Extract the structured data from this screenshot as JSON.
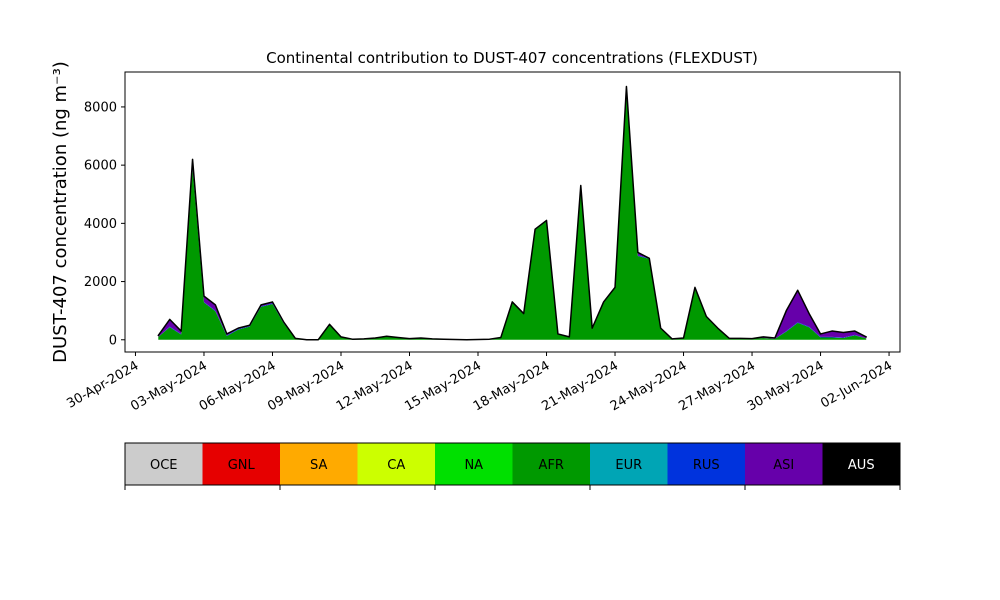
{
  "chart_data": {
    "type": "stacked_area",
    "title": "Continental contribution to DUST-407 concentrations (FLEXDUST)",
    "ylabel": "DUST-407 concentration (ng m⁻³)",
    "x": [
      "2024-05-01 00:00",
      "2024-05-01 12:00",
      "2024-05-02 00:00",
      "2024-05-02 12:00",
      "2024-05-03 00:00",
      "2024-05-03 12:00",
      "2024-05-04 00:00",
      "2024-05-04 12:00",
      "2024-05-05 00:00",
      "2024-05-05 12:00",
      "2024-05-06 00:00",
      "2024-05-06 12:00",
      "2024-05-07 00:00",
      "2024-05-07 12:00",
      "2024-05-08 00:00",
      "2024-05-08 12:00",
      "2024-05-09 00:00",
      "2024-05-09 12:00",
      "2024-05-10 00:00",
      "2024-05-10 12:00",
      "2024-05-11 00:00",
      "2024-05-11 12:00",
      "2024-05-12 00:00",
      "2024-05-12 12:00",
      "2024-05-13 00:00",
      "2024-05-13 12:00",
      "2024-05-14 00:00",
      "2024-05-14 12:00",
      "2024-05-15 00:00",
      "2024-05-15 12:00",
      "2024-05-16 00:00",
      "2024-05-16 12:00",
      "2024-05-17 00:00",
      "2024-05-17 12:00",
      "2024-05-18 00:00",
      "2024-05-18 12:00",
      "2024-05-19 00:00",
      "2024-05-19 12:00",
      "2024-05-20 00:00",
      "2024-05-20 12:00",
      "2024-05-21 00:00",
      "2024-05-21 12:00",
      "2024-05-22 00:00",
      "2024-05-22 12:00",
      "2024-05-23 00:00",
      "2024-05-23 12:00",
      "2024-05-24 00:00",
      "2024-05-24 12:00",
      "2024-05-25 00:00",
      "2024-05-25 12:00",
      "2024-05-26 00:00",
      "2024-05-26 12:00",
      "2024-05-27 00:00",
      "2024-05-27 12:00",
      "2024-05-28 00:00",
      "2024-05-28 12:00",
      "2024-05-29 00:00",
      "2024-05-29 12:00",
      "2024-05-30 00:00",
      "2024-05-30 12:00",
      "2024-05-31 00:00",
      "2024-05-31 12:00",
      "2024-06-01 00:00"
    ],
    "xlim": [
      "2024-04-29 13:00",
      "2024-06-02 11:30"
    ],
    "xticks": [
      {
        "value": "2024-04-30 00:00",
        "label": "30-Apr-2024"
      },
      {
        "value": "2024-05-03 00:00",
        "label": "03-May-2024"
      },
      {
        "value": "2024-05-06 00:00",
        "label": "06-May-2024"
      },
      {
        "value": "2024-05-09 00:00",
        "label": "09-May-2024"
      },
      {
        "value": "2024-05-12 00:00",
        "label": "12-May-2024"
      },
      {
        "value": "2024-05-15 00:00",
        "label": "15-May-2024"
      },
      {
        "value": "2024-05-18 00:00",
        "label": "18-May-2024"
      },
      {
        "value": "2024-05-21 00:00",
        "label": "21-May-2024"
      },
      {
        "value": "2024-05-24 00:00",
        "label": "24-May-2024"
      },
      {
        "value": "2024-05-27 00:00",
        "label": "27-May-2024"
      },
      {
        "value": "2024-05-30 00:00",
        "label": "30-May-2024"
      },
      {
        "value": "2024-06-02 00:00",
        "label": "02-Jun-2024"
      }
    ],
    "ylim": [
      -420,
      9200
    ],
    "yticks": [
      0,
      2000,
      4000,
      6000,
      8000
    ],
    "grid": false,
    "series": [
      {
        "name": "OCE",
        "color": "#cccccc",
        "values": [
          0,
          0,
          0,
          0,
          0,
          0,
          0,
          0,
          0,
          0,
          0,
          0,
          0,
          0,
          0,
          0,
          0,
          0,
          0,
          0,
          0,
          0,
          0,
          0,
          0,
          0,
          0,
          0,
          0,
          0,
          0,
          0,
          0,
          0,
          0,
          0,
          0,
          0,
          0,
          0,
          0,
          0,
          0,
          0,
          0,
          0,
          0,
          0,
          0,
          0,
          0,
          0,
          0,
          0,
          0,
          0,
          0,
          0,
          0,
          0,
          0,
          0,
          0
        ]
      },
      {
        "name": "GNL",
        "color": "#e60000",
        "values": [
          0,
          0,
          0,
          0,
          0,
          0,
          0,
          0,
          0,
          0,
          0,
          0,
          0,
          0,
          0,
          0,
          0,
          0,
          0,
          0,
          0,
          0,
          0,
          0,
          0,
          0,
          0,
          0,
          0,
          0,
          0,
          0,
          0,
          0,
          0,
          0,
          0,
          0,
          0,
          0,
          0,
          0,
          0,
          0,
          0,
          0,
          0,
          0,
          0,
          0,
          0,
          0,
          0,
          0,
          0,
          0,
          0,
          0,
          0,
          0,
          0,
          0,
          0
        ]
      },
      {
        "name": "SA",
        "color": "#ffaa00",
        "values": [
          0,
          0,
          0,
          0,
          0,
          0,
          0,
          0,
          0,
          0,
          0,
          0,
          0,
          0,
          0,
          0,
          0,
          0,
          0,
          0,
          0,
          0,
          0,
          0,
          0,
          0,
          0,
          0,
          0,
          0,
          0,
          0,
          0,
          0,
          0,
          0,
          0,
          0,
          0,
          0,
          0,
          0,
          0,
          0,
          0,
          0,
          0,
          0,
          0,
          0,
          0,
          0,
          0,
          0,
          0,
          0,
          0,
          0,
          0,
          0,
          0,
          0,
          0
        ]
      },
      {
        "name": "CA",
        "color": "#ccff00",
        "values": [
          0,
          0,
          0,
          0,
          0,
          0,
          0,
          0,
          0,
          0,
          0,
          0,
          0,
          0,
          0,
          0,
          0,
          0,
          0,
          0,
          0,
          0,
          0,
          0,
          0,
          0,
          0,
          0,
          0,
          0,
          0,
          0,
          0,
          0,
          0,
          0,
          0,
          0,
          0,
          0,
          0,
          0,
          0,
          0,
          0,
          0,
          0,
          0,
          0,
          0,
          0,
          0,
          0,
          0,
          0,
          0,
          0,
          0,
          0,
          0,
          0,
          0,
          0
        ]
      },
      {
        "name": "NA",
        "color": "#00e000",
        "values": [
          0,
          0,
          0,
          0,
          0,
          0,
          0,
          0,
          0,
          0,
          0,
          0,
          0,
          0,
          0,
          0,
          0,
          0,
          0,
          0,
          0,
          0,
          0,
          0,
          0,
          0,
          0,
          0,
          0,
          0,
          0,
          0,
          0,
          0,
          0,
          0,
          0,
          0,
          0,
          0,
          0,
          0,
          0,
          0,
          0,
          0,
          0,
          0,
          0,
          0,
          0,
          0,
          0,
          0,
          0,
          0,
          0,
          0,
          0,
          0,
          0,
          0,
          0
        ]
      },
      {
        "name": "AFR",
        "color": "#009900",
        "values": [
          100,
          430,
          180,
          5880,
          1280,
          980,
          130,
          350,
          450,
          1130,
          1230,
          550,
          50,
          0,
          0,
          530,
          100,
          20,
          30,
          60,
          120,
          80,
          40,
          60,
          30,
          20,
          10,
          0,
          10,
          20,
          80,
          1280,
          880,
          3780,
          4080,
          180,
          100,
          5280,
          380,
          1280,
          1780,
          8480,
          2880,
          2780,
          380,
          30,
          60,
          1780,
          780,
          380,
          50,
          50,
          40,
          60,
          30,
          280,
          580,
          430,
          80,
          80,
          60,
          150,
          50
        ]
      },
      {
        "name": "EUR",
        "color": "#00a5b5",
        "values": [
          0,
          0,
          0,
          0,
          0,
          0,
          0,
          0,
          0,
          0,
          0,
          0,
          0,
          0,
          0,
          0,
          0,
          0,
          0,
          0,
          0,
          0,
          0,
          0,
          0,
          0,
          0,
          0,
          0,
          0,
          0,
          0,
          0,
          0,
          0,
          0,
          0,
          0,
          0,
          0,
          0,
          0,
          0,
          0,
          0,
          0,
          0,
          0,
          0,
          0,
          0,
          0,
          0,
          0,
          0,
          0,
          0,
          0,
          0,
          0,
          0,
          0,
          0
        ]
      },
      {
        "name": "RUS",
        "color": "#0033dd",
        "values": [
          0,
          20,
          20,
          20,
          20,
          20,
          20,
          20,
          20,
          20,
          20,
          20,
          0,
          0,
          0,
          0,
          0,
          0,
          0,
          0,
          0,
          0,
          0,
          0,
          0,
          0,
          0,
          0,
          0,
          0,
          0,
          20,
          20,
          20,
          20,
          20,
          0,
          20,
          20,
          20,
          20,
          20,
          20,
          20,
          20,
          0,
          0,
          20,
          20,
          20,
          0,
          0,
          0,
          0,
          0,
          20,
          20,
          20,
          20,
          20,
          20,
          20,
          0
        ]
      },
      {
        "name": "ASI",
        "color": "#6600aa",
        "values": [
          50,
          250,
          100,
          300,
          200,
          200,
          50,
          30,
          30,
          50,
          50,
          30,
          0,
          0,
          0,
          0,
          0,
          0,
          0,
          0,
          0,
          0,
          0,
          0,
          0,
          0,
          0,
          0,
          0,
          0,
          0,
          0,
          0,
          0,
          0,
          0,
          0,
          0,
          0,
          0,
          0,
          200,
          100,
          0,
          0,
          0,
          0,
          0,
          0,
          0,
          0,
          0,
          0,
          40,
          30,
          700,
          1100,
          450,
          100,
          200,
          170,
          130,
          50
        ]
      },
      {
        "name": "AUS",
        "color": "#000000",
        "values": [
          0,
          0,
          0,
          0,
          0,
          0,
          0,
          0,
          0,
          0,
          0,
          0,
          0,
          0,
          0,
          0,
          0,
          0,
          0,
          0,
          0,
          0,
          0,
          0,
          0,
          0,
          0,
          0,
          0,
          0,
          0,
          0,
          0,
          0,
          0,
          0,
          0,
          0,
          0,
          0,
          0,
          0,
          0,
          0,
          0,
          0,
          0,
          0,
          0,
          0,
          0,
          0,
          0,
          0,
          0,
          0,
          0,
          0,
          0,
          0,
          0,
          0,
          0
        ]
      }
    ]
  }
}
